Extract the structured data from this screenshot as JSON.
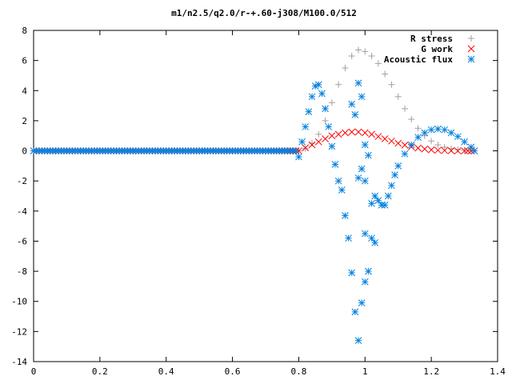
{
  "chart_data": {
    "type": "scatter",
    "title": "m1/n2.5/q2.0/r-+.60-j308/M100.0/512",
    "xlabel": "",
    "ylabel": "",
    "xlim": [
      0,
      1.4
    ],
    "ylim": [
      -14,
      8
    ],
    "grid": false,
    "legend_position": "top-right",
    "x_ticks": [
      "0",
      "0.2",
      "0.4",
      "0.6",
      "0.8",
      "1",
      "1.2",
      "1.4"
    ],
    "y_ticks": [
      "-14",
      "-12",
      "-10",
      "-8",
      "-6",
      "-4",
      "-2",
      "0",
      "2",
      "4",
      "6",
      "8"
    ],
    "series": [
      {
        "name": "R stress",
        "marker": "plus",
        "color": "#a0a0a0",
        "points": [
          [
            0.0,
            0
          ],
          [
            0.1,
            0
          ],
          [
            0.2,
            0
          ],
          [
            0.3,
            0
          ],
          [
            0.4,
            0
          ],
          [
            0.5,
            0
          ],
          [
            0.6,
            0
          ],
          [
            0.7,
            0
          ],
          [
            0.8,
            0
          ],
          [
            0.82,
            0.15
          ],
          [
            0.84,
            0.5
          ],
          [
            0.86,
            1.1
          ],
          [
            0.88,
            2.0
          ],
          [
            0.9,
            3.2
          ],
          [
            0.92,
            4.4
          ],
          [
            0.94,
            5.5
          ],
          [
            0.96,
            6.3
          ],
          [
            0.98,
            6.7
          ],
          [
            1.0,
            6.6
          ],
          [
            1.02,
            6.3
          ],
          [
            1.04,
            5.8
          ],
          [
            1.06,
            5.1
          ],
          [
            1.08,
            4.4
          ],
          [
            1.1,
            3.6
          ],
          [
            1.12,
            2.8
          ],
          [
            1.14,
            2.1
          ],
          [
            1.16,
            1.5
          ],
          [
            1.18,
            1.0
          ],
          [
            1.2,
            0.65
          ],
          [
            1.22,
            0.4
          ],
          [
            1.24,
            0.25
          ],
          [
            1.26,
            0.15
          ],
          [
            1.28,
            0.08
          ],
          [
            1.3,
            0.04
          ],
          [
            1.32,
            0.01
          ],
          [
            1.33,
            0.0
          ]
        ]
      },
      {
        "name": "G work",
        "marker": "cross",
        "color": "#ff0000",
        "points": [
          [
            0.0,
            0
          ],
          [
            0.1,
            0
          ],
          [
            0.2,
            0
          ],
          [
            0.3,
            0
          ],
          [
            0.4,
            0
          ],
          [
            0.5,
            0
          ],
          [
            0.6,
            0
          ],
          [
            0.7,
            0
          ],
          [
            0.8,
            0
          ],
          [
            0.82,
            0.2
          ],
          [
            0.84,
            0.4
          ],
          [
            0.86,
            0.6
          ],
          [
            0.88,
            0.8
          ],
          [
            0.9,
            1.0
          ],
          [
            0.92,
            1.1
          ],
          [
            0.94,
            1.2
          ],
          [
            0.96,
            1.25
          ],
          [
            0.98,
            1.25
          ],
          [
            1.0,
            1.2
          ],
          [
            1.02,
            1.1
          ],
          [
            1.04,
            0.95
          ],
          [
            1.06,
            0.8
          ],
          [
            1.08,
            0.65
          ],
          [
            1.1,
            0.5
          ],
          [
            1.12,
            0.38
          ],
          [
            1.14,
            0.27
          ],
          [
            1.16,
            0.18
          ],
          [
            1.18,
            0.12
          ],
          [
            1.2,
            0.07
          ],
          [
            1.22,
            0.04
          ],
          [
            1.24,
            0.02
          ],
          [
            1.26,
            0.01
          ],
          [
            1.28,
            0.0
          ],
          [
            1.3,
            0.0
          ],
          [
            1.33,
            0.0
          ]
        ]
      },
      {
        "name": "Acoustic flux",
        "marker": "star",
        "color": "#0080e0",
        "points": [
          [
            0.0,
            0
          ],
          [
            0.1,
            0
          ],
          [
            0.2,
            0
          ],
          [
            0.3,
            0
          ],
          [
            0.4,
            0
          ],
          [
            0.5,
            0
          ],
          [
            0.6,
            0
          ],
          [
            0.7,
            0
          ],
          [
            0.79,
            0
          ],
          [
            0.8,
            -0.4
          ],
          [
            0.81,
            0.6
          ],
          [
            0.82,
            1.6
          ],
          [
            0.83,
            2.6
          ],
          [
            0.84,
            3.6
          ],
          [
            0.85,
            4.3
          ],
          [
            0.86,
            4.4
          ],
          [
            0.87,
            3.8
          ],
          [
            0.88,
            2.8
          ],
          [
            0.89,
            1.6
          ],
          [
            0.9,
            0.3
          ],
          [
            0.91,
            -0.9
          ],
          [
            0.92,
            -2.0
          ],
          [
            0.93,
            -2.6
          ],
          [
            0.94,
            -4.3
          ],
          [
            0.95,
            -5.8
          ],
          [
            0.96,
            -8.1
          ],
          [
            0.97,
            -10.7
          ],
          [
            0.98,
            -12.6
          ],
          [
            0.99,
            -10.1
          ],
          [
            1.0,
            -8.7
          ],
          [
            1.01,
            -8.0
          ],
          [
            1.0,
            -5.5
          ],
          [
            1.02,
            -5.8
          ],
          [
            1.03,
            -6.1
          ],
          [
            1.02,
            -3.5
          ],
          [
            1.03,
            -3.0
          ],
          [
            1.04,
            -3.3
          ],
          [
            1.05,
            -3.6
          ],
          [
            1.06,
            -3.6
          ],
          [
            1.07,
            -3.0
          ],
          [
            1.08,
            -2.3
          ],
          [
            1.09,
            -1.6
          ],
          [
            1.1,
            -1.0
          ],
          [
            1.12,
            -0.2
          ],
          [
            1.14,
            0.4
          ],
          [
            1.16,
            0.9
          ],
          [
            1.18,
            1.2
          ],
          [
            1.2,
            1.4
          ],
          [
            1.22,
            1.45
          ],
          [
            1.24,
            1.4
          ],
          [
            1.26,
            1.2
          ],
          [
            1.28,
            0.95
          ],
          [
            1.3,
            0.6
          ],
          [
            1.32,
            0.25
          ],
          [
            1.33,
            0.0
          ],
          [
            0.98,
            4.5
          ],
          [
            0.99,
            3.6
          ],
          [
            0.97,
            2.4
          ],
          [
            0.96,
            3.1
          ],
          [
            1.0,
            0.4
          ],
          [
            1.01,
            -0.3
          ],
          [
            0.99,
            -1.2
          ],
          [
            1.0,
            -2.0
          ],
          [
            0.98,
            -1.8
          ]
        ]
      }
    ]
  }
}
